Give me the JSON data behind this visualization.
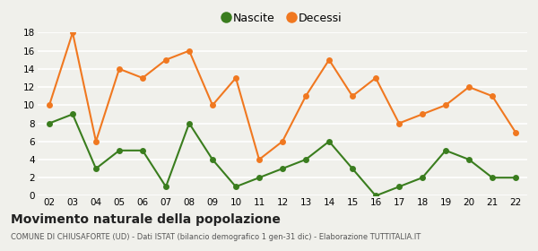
{
  "years": [
    "02",
    "03",
    "04",
    "05",
    "06",
    "07",
    "08",
    "09",
    "10",
    "11",
    "12",
    "13",
    "14",
    "15",
    "16",
    "17",
    "18",
    "19",
    "20",
    "21",
    "22"
  ],
  "nascite": [
    8,
    9,
    3,
    5,
    5,
    1,
    8,
    4,
    1,
    2,
    3,
    4,
    6,
    3,
    0,
    1,
    2,
    5,
    4,
    2,
    2
  ],
  "decessi": [
    10,
    18,
    6,
    14,
    13,
    15,
    16,
    10,
    13,
    4,
    6,
    11,
    15,
    11,
    13,
    8,
    9,
    10,
    12,
    11,
    7
  ],
  "nascite_color": "#3a7d1e",
  "decessi_color": "#f07820",
  "background_color": "#f0f0eb",
  "grid_color": "#ffffff",
  "title": "Movimento naturale della popolazione",
  "subtitle": "COMUNE DI CHIUSAFORTE (UD) - Dati ISTAT (bilancio demografico 1 gen-31 dic) - Elaborazione TUTTITALIA.IT",
  "ylim": [
    0,
    18
  ],
  "yticks": [
    0,
    2,
    4,
    6,
    8,
    10,
    12,
    14,
    16,
    18
  ],
  "legend_nascite": "Nascite",
  "legend_decessi": "Decessi",
  "marker_size": 5,
  "line_width": 1.5
}
